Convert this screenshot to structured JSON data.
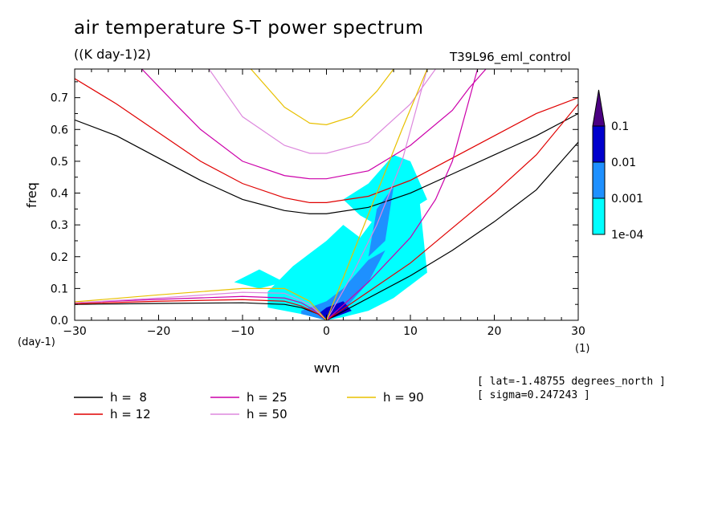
{
  "header": {
    "title": "air temperature S-T power spectrum",
    "units": "((K day-1)2)",
    "run_id": "T39L96_eml_control"
  },
  "info": {
    "lat": "[ lat=-1.48755 degrees_north ]",
    "sigma": "[ sigma=0.247243 ]"
  },
  "chart_data": {
    "type": "heatmap",
    "title": "air temperature S-T power spectrum",
    "subtitle": "((K day-1)2)",
    "xlabel": "wvn",
    "ylabel": "freq",
    "x_unit": "(1)",
    "y_unit": "(day-1)",
    "xlim": [
      -30,
      30
    ],
    "ylim": [
      0,
      0.79
    ],
    "x_ticks": [
      -30,
      -20,
      -10,
      0,
      10,
      20,
      30
    ],
    "x_tick_labels": [
      "−30",
      "−20",
      "−10",
      "0",
      "10",
      "20",
      "30"
    ],
    "y_ticks": [
      0.0,
      0.1,
      0.2,
      0.3,
      0.4,
      0.5,
      0.6,
      0.7
    ],
    "y_tick_labels": [
      "0.0",
      "0.1",
      "0.2",
      "0.3",
      "0.4",
      "0.5",
      "0.6",
      "0.7"
    ],
    "colorbar": {
      "levels": [
        "1e-04",
        "0.001",
        "0.01",
        "0.1"
      ],
      "colors": [
        "#00ffff",
        "#1e90ff",
        "#0000cd",
        "#4b0082"
      ]
    },
    "power_regions": [
      {
        "level": "1e-04",
        "x": [
          -7,
          -4,
          -2,
          0,
          2,
          4,
          6,
          8,
          11,
          12,
          8,
          5,
          2,
          0,
          -3,
          -7
        ],
        "y": [
          0.09,
          0.17,
          0.21,
          0.25,
          0.3,
          0.26,
          0.33,
          0.38,
          0.4,
          0.15,
          0.07,
          0.03,
          0.01,
          0.0,
          0.02,
          0.04
        ]
      },
      {
        "level": "1e-04",
        "x": [
          -11,
          -8,
          -5,
          -8
        ],
        "y": [
          0.12,
          0.16,
          0.12,
          0.1
        ]
      },
      {
        "level": "1e-04",
        "x": [
          2,
          5,
          8,
          10,
          12,
          9,
          6,
          4
        ],
        "y": [
          0.38,
          0.43,
          0.52,
          0.5,
          0.38,
          0.33,
          0.3,
          0.33
        ]
      },
      {
        "level": "0.001",
        "x": [
          -3,
          0,
          2,
          5,
          7,
          5,
          2,
          0,
          -3
        ],
        "y": [
          0.03,
          0.06,
          0.1,
          0.19,
          0.22,
          0.12,
          0.03,
          0.0,
          0.02
        ]
      },
      {
        "level": "0.001",
        "x": [
          5,
          6,
          8,
          7
        ],
        "y": [
          0.2,
          0.35,
          0.42,
          0.25
        ]
      },
      {
        "level": "0.01",
        "x": [
          -1,
          0,
          2,
          3,
          1,
          0
        ],
        "y": [
          0.02,
          0.04,
          0.06,
          0.03,
          0.01,
          0.0
        ]
      }
    ],
    "series": [
      {
        "name": "h =  8",
        "color": "#000000",
        "x": [
          -30,
          -25,
          -20,
          -15,
          -10,
          -5,
          -2,
          0,
          5,
          10,
          15,
          20,
          25,
          30
        ],
        "y": [
          0.63,
          0.58,
          0.51,
          0.44,
          0.38,
          0.345,
          0.335,
          0.335,
          0.355,
          0.4,
          0.46,
          0.52,
          0.58,
          0.65
        ]
      },
      {
        "name": "h =  8",
        "color": "#000000",
        "x": [
          -30,
          -20,
          -10,
          -5,
          -3,
          -1,
          0,
          5,
          10,
          15,
          20,
          25,
          30
        ],
        "y": [
          0.05,
          0.053,
          0.055,
          0.05,
          0.04,
          0.02,
          0.0,
          0.07,
          0.14,
          0.22,
          0.31,
          0.41,
          0.56
        ]
      },
      {
        "name": "h = 12",
        "color": "#e00000",
        "x": [
          -30,
          -25,
          -20,
          -15,
          -10,
          -5,
          -2,
          0,
          5,
          10,
          15,
          20,
          25,
          30
        ],
        "y": [
          0.76,
          0.68,
          0.59,
          0.5,
          0.43,
          0.385,
          0.37,
          0.37,
          0.39,
          0.44,
          0.51,
          0.58,
          0.65,
          0.7
        ]
      },
      {
        "name": "h = 12",
        "color": "#e00000",
        "x": [
          -30,
          -20,
          -10,
          -5,
          -3,
          -1,
          0,
          5,
          10,
          15,
          20,
          25,
          30
        ],
        "y": [
          0.052,
          0.06,
          0.065,
          0.06,
          0.045,
          0.02,
          0.0,
          0.09,
          0.18,
          0.29,
          0.4,
          0.52,
          0.68
        ]
      },
      {
        "name": "h = 25",
        "color": "#cc00aa",
        "x": [
          -22,
          -18,
          -15,
          -10,
          -5,
          -2,
          0,
          5,
          10,
          15,
          17,
          19
        ],
        "y": [
          0.79,
          0.68,
          0.6,
          0.5,
          0.455,
          0.445,
          0.445,
          0.47,
          0.55,
          0.66,
          0.73,
          0.79
        ]
      },
      {
        "name": "h = 25",
        "color": "#cc00aa",
        "x": [
          -30,
          -20,
          -10,
          -5,
          -3,
          -1,
          0,
          5,
          10,
          13,
          15,
          18
        ],
        "y": [
          0.055,
          0.066,
          0.075,
          0.07,
          0.055,
          0.025,
          0.0,
          0.12,
          0.26,
          0.38,
          0.5,
          0.79
        ]
      },
      {
        "name": "h = 50",
        "color": "#dd88dd",
        "x": [
          -14,
          -10,
          -5,
          -2,
          0,
          5,
          10,
          13
        ],
        "y": [
          0.79,
          0.64,
          0.55,
          0.525,
          0.525,
          0.56,
          0.68,
          0.79
        ]
      },
      {
        "name": "h = 50",
        "color": "#dd88dd",
        "x": [
          -30,
          -20,
          -10,
          -5,
          -2,
          0,
          3,
          6,
          9,
          12
        ],
        "y": [
          0.055,
          0.07,
          0.088,
          0.085,
          0.05,
          0.0,
          0.14,
          0.3,
          0.5,
          0.79
        ]
      },
      {
        "name": "h = 90",
        "color": "#e8c000",
        "x": [
          -9,
          -5,
          -2,
          0,
          3,
          6,
          8
        ],
        "y": [
          0.79,
          0.67,
          0.62,
          0.615,
          0.64,
          0.72,
          0.79
        ]
      },
      {
        "name": "h = 90",
        "color": "#e8c000",
        "x": [
          -30,
          -20,
          -10,
          -5,
          -2,
          0,
          3,
          6,
          9,
          12
        ],
        "y": [
          0.058,
          0.08,
          0.1,
          0.1,
          0.06,
          0.0,
          0.2,
          0.4,
          0.6,
          0.79
        ]
      }
    ],
    "legend": [
      {
        "label": "h =  8",
        "color": "#000000"
      },
      {
        "label": "h = 12",
        "color": "#e00000"
      },
      {
        "label": "h = 25",
        "color": "#cc00aa"
      },
      {
        "label": "h = 50",
        "color": "#dd88dd"
      },
      {
        "label": "h = 90",
        "color": "#e8c000"
      }
    ],
    "legend_placement": "bottom-left",
    "grid": false
  }
}
